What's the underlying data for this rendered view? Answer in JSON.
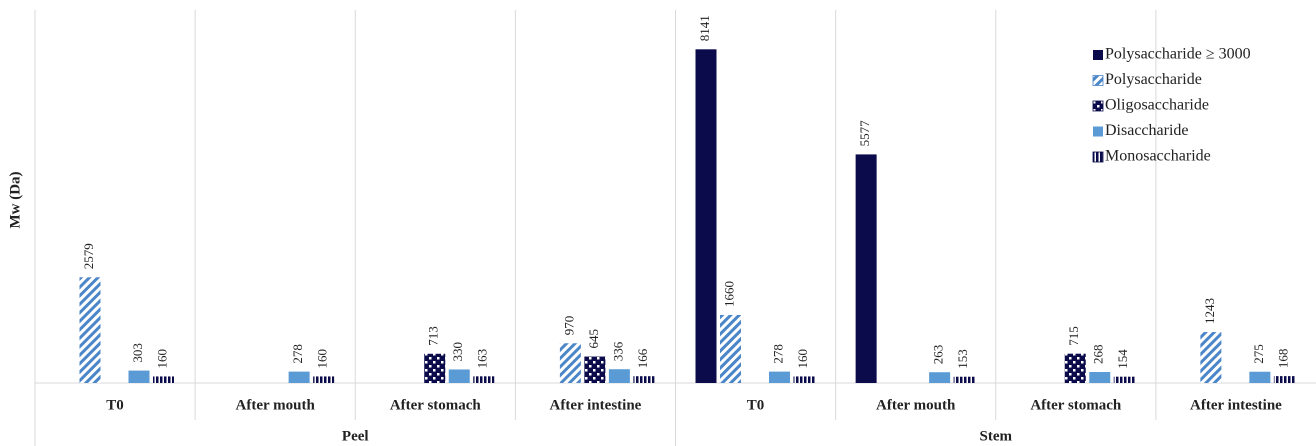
{
  "chart_data": {
    "type": "bar",
    "y_label": "Mw (Da)",
    "categories": [
      "T0",
      "After mouth",
      "After stomach",
      "After intestine",
      "T0",
      "After mouth",
      "After stomach",
      "After intestine"
    ],
    "group_labels": [
      "Peel",
      "Stem"
    ],
    "ylim": [
      0,
      9100
    ],
    "legend": "upper right",
    "series": [
      {
        "name": "Polysaccharide ≥ 3000",
        "color": "#0b0b4b",
        "pattern": "solid",
        "values": [
          null,
          null,
          null,
          null,
          8141,
          5577,
          null,
          null
        ]
      },
      {
        "name": "Polysaccharide",
        "color": "#4a86c8",
        "pattern": "diagonal",
        "values": [
          2579,
          null,
          null,
          970,
          1660,
          null,
          null,
          1243
        ]
      },
      {
        "name": "Oligosaccharide",
        "color": "#0b0b4b",
        "pattern": "dots",
        "values": [
          null,
          null,
          713,
          645,
          null,
          null,
          715,
          null
        ]
      },
      {
        "name": "Disaccharide",
        "color": "#5b9bd5",
        "pattern": "solid",
        "values": [
          303,
          278,
          330,
          336,
          278,
          263,
          268,
          275
        ]
      },
      {
        "name": "Monosaccharide",
        "color": "#0b0b4b",
        "pattern": "vertical",
        "values": [
          160,
          160,
          163,
          166,
          160,
          153,
          154,
          168
        ]
      }
    ]
  }
}
